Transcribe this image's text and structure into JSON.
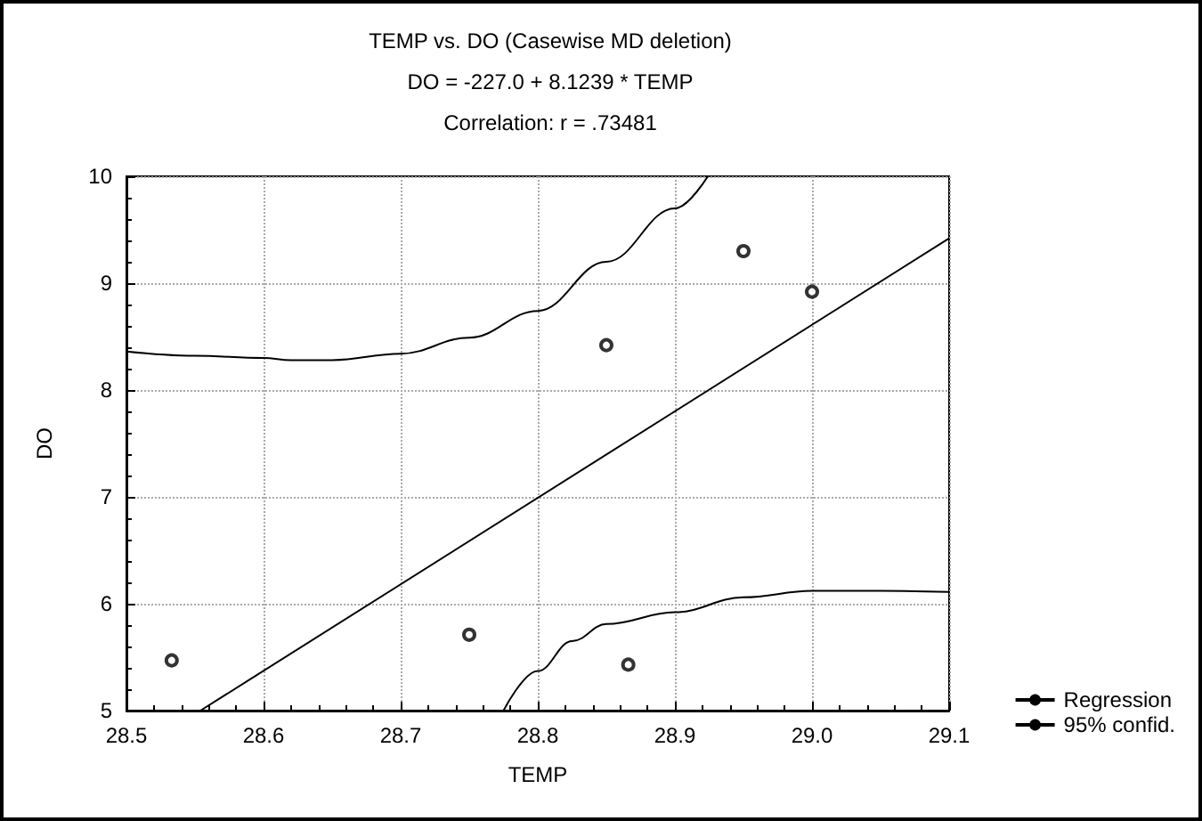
{
  "chart_data": {
    "type": "scatter",
    "title": "TEMP vs. DO (Casewise MD deletion)",
    "subtitle": "DO = -227.0 + 8.1239 * TEMP",
    "annotations": [
      "Correlation: r = .73481"
    ],
    "xlabel": "TEMP",
    "ylabel": "DO",
    "xlim": [
      28.5,
      29.1
    ],
    "xticks": [
      28.5,
      28.6,
      28.7,
      28.8,
      28.9,
      {
        "value": 29,
        "label": "29.0"
      },
      29.1
    ],
    "ylim": [
      5,
      10
    ],
    "yticks": [
      5,
      6,
      7,
      8,
      9,
      10
    ],
    "grid": true,
    "legend": "right",
    "series": [
      {
        "color": "#000000",
        "marker": "circle",
        "x": [
          28.533,
          28.75,
          28.85,
          28.866,
          28.95,
          29.0
        ],
        "values": [
          5.47,
          5.71,
          8.42,
          5.43,
          9.3,
          8.92
        ]
      },
      {
        "type": "line",
        "name": "Regression",
        "color": "#000000",
        "marker": "none",
        "x": [
          28.554,
          29.1
        ],
        "values": [
          5,
          9.42
        ]
      },
      {
        "type": "line",
        "name": "95% confid.",
        "color": "#000000",
        "marker": "none",
        "x": [
          28.5,
          28.55,
          28.6,
          28.62,
          28.65,
          28.7,
          28.75,
          28.8,
          28.85,
          28.9,
          28.924
        ],
        "values": [
          8.36,
          8.32,
          8.3,
          8.28,
          8.28,
          8.34,
          8.49,
          8.74,
          9.2,
          9.7,
          10
        ]
      },
      {
        "type": "line",
        "color": "#000000",
        "marker": "none",
        "x": [
          28.775,
          28.8,
          28.825,
          28.85,
          28.9,
          28.95,
          29.0,
          29.05,
          29.1
        ],
        "values": [
          5,
          5.37,
          5.65,
          5.81,
          5.92,
          6.06,
          6.12,
          6.12,
          6.11
        ]
      }
    ]
  }
}
